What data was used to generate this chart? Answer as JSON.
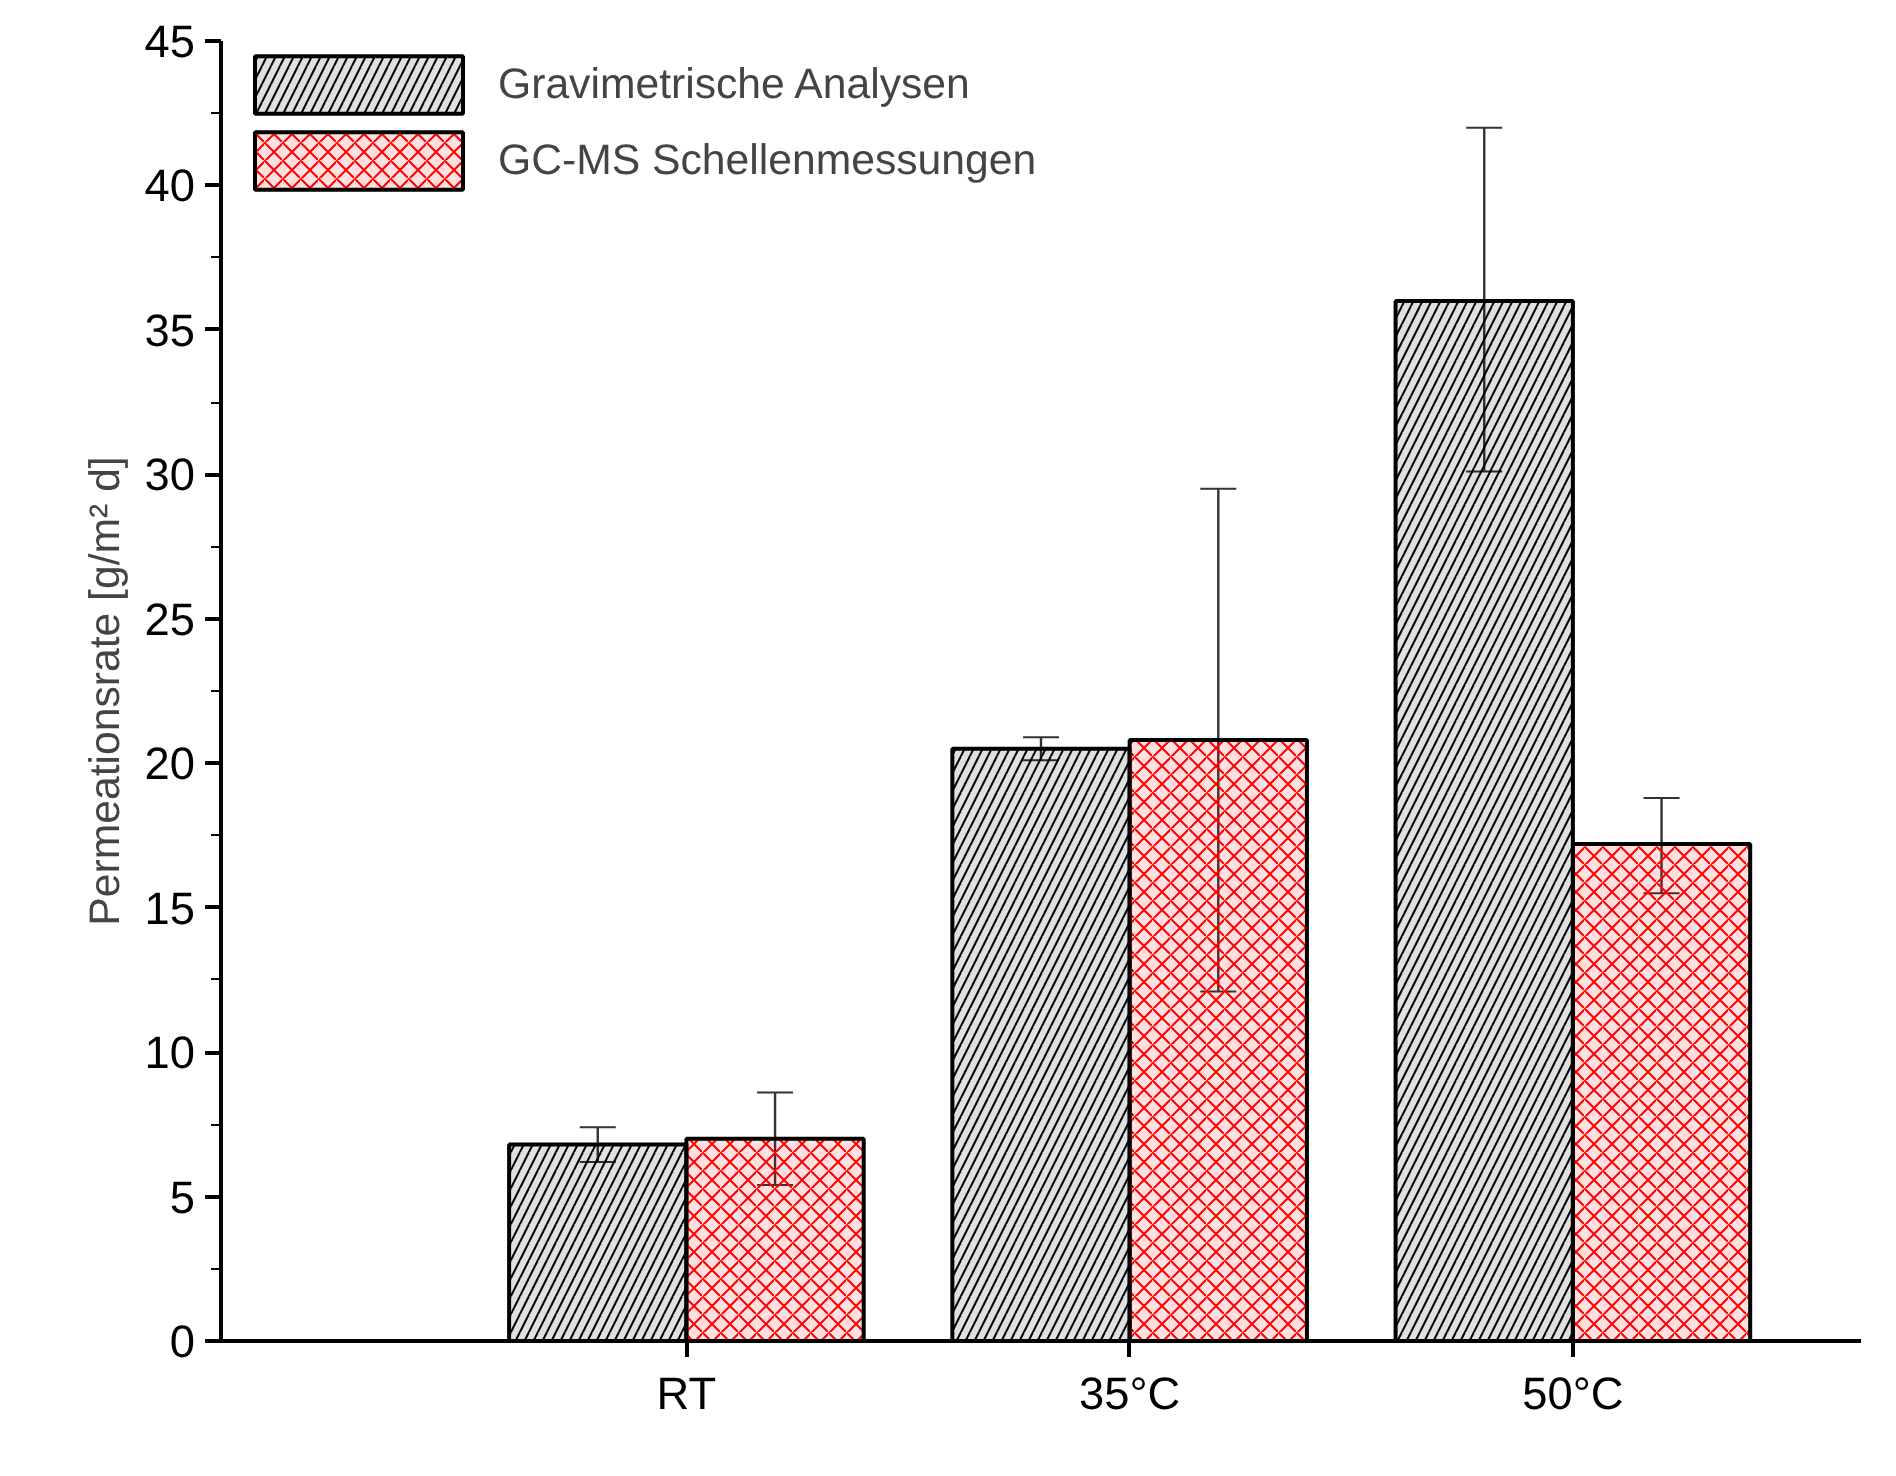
{
  "chart_data": {
    "type": "bar",
    "ylabel": "Permeationsrate [g/m² d]",
    "categories": [
      "RT",
      "35°C",
      "50°C"
    ],
    "series": [
      {
        "name": "Gravimetrische Analysen",
        "color": "#000000",
        "values": [
          6.8,
          20.5,
          36.0
        ],
        "errors": [
          [
            6.2,
            7.4
          ],
          [
            20.1,
            20.9
          ],
          [
            30.1,
            42.0
          ]
        ]
      },
      {
        "name": "GC-MS Schellenmessungen",
        "color": "#ff0000",
        "values": [
          7.0,
          20.8,
          17.2
        ],
        "errors": [
          [
            5.4,
            8.6
          ],
          [
            12.1,
            29.5
          ],
          [
            15.5,
            18.8
          ]
        ]
      }
    ],
    "ylim": [
      0,
      45
    ],
    "yticks": [
      0,
      5,
      10,
      15,
      20,
      25,
      30,
      35,
      40,
      45
    ],
    "grid": false,
    "legend": "top left"
  }
}
